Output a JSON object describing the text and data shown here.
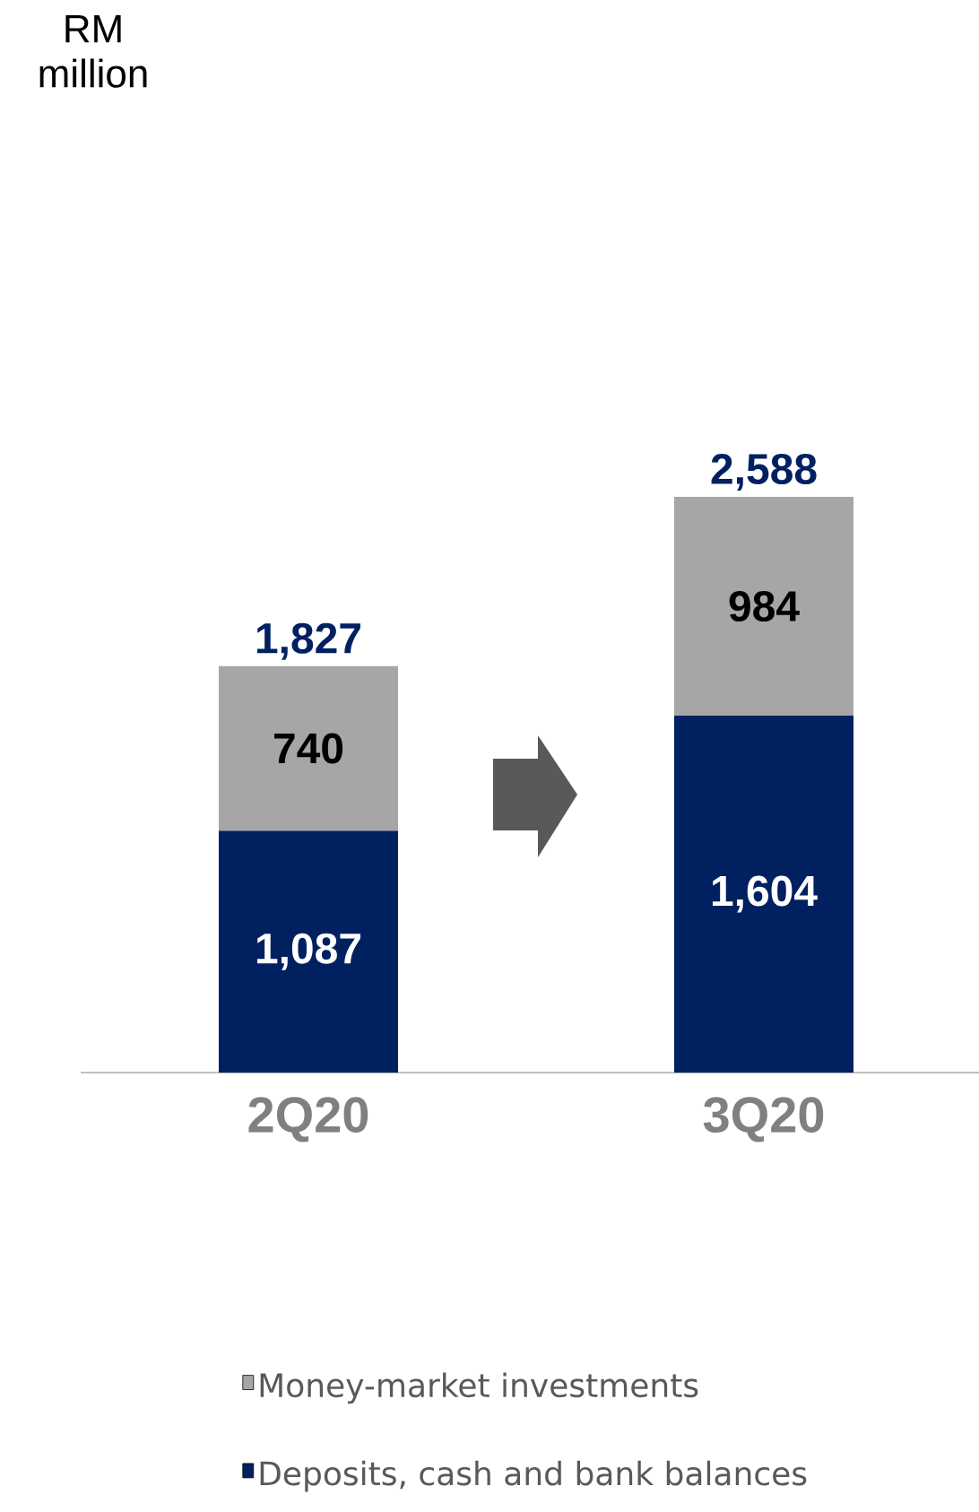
{
  "chart_data": {
    "type": "bar",
    "stacked": true,
    "annotations": [
      "RM million"
    ],
    "categories": [
      "2Q20",
      "3Q20"
    ],
    "series": [
      {
        "name": "Deposits, cash and bank balances",
        "color": "#002060",
        "values": [
          1087,
          1604
        ],
        "value_labels": [
          "1,087",
          "1,604"
        ]
      },
      {
        "name": "Money-market investments",
        "color": "#a6a6a6",
        "values": [
          740,
          984
        ],
        "value_labels": [
          "740",
          "984"
        ]
      }
    ],
    "totals": [
      "1,827",
      "2,588"
    ],
    "legend": "bottom"
  }
}
